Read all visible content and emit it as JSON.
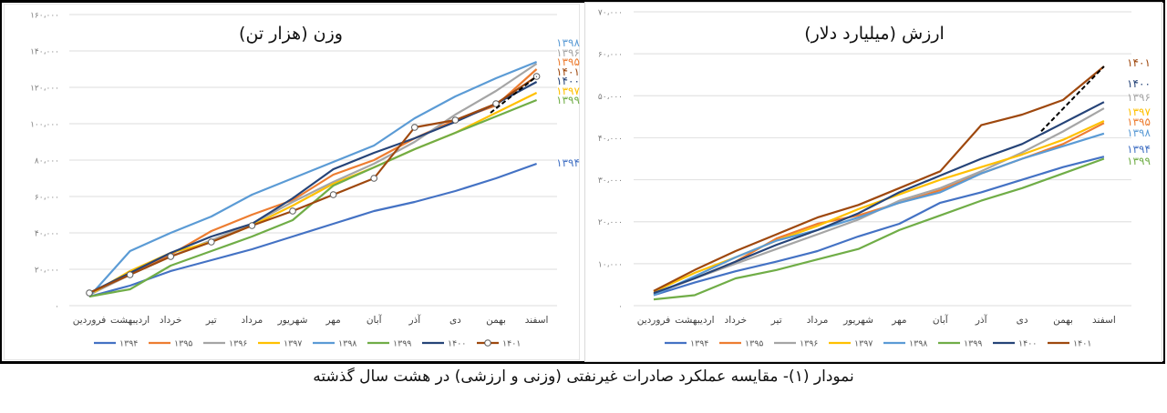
{
  "caption": "نمودار (۱)- مقایسه عملکرد صادرات غیرنفتی (وزنی و ارزشی) در هشت سال گذشته",
  "months": [
    "فروردین",
    "اردیبهشت",
    "خرداد",
    "تیر",
    "مرداد",
    "شهریور",
    "مهر",
    "آبان",
    "آذر",
    "دی",
    "بهمن",
    "اسفند"
  ],
  "series_colors": {
    "1394": "#4472c4",
    "1395": "#ed7d31",
    "1396": "#a5a5a5",
    "1397": "#ffc000",
    "1398": "#5b9bd5",
    "1399": "#70ad47",
    "1400": "#264478",
    "1401": "#9e480e"
  },
  "legend_labels": [
    "۱۳۹۴",
    "۱۳۹۵",
    "۱۳۹۶",
    "۱۳۹۷",
    "۱۳۹۸",
    "۱۳۹۹",
    "۱۴۰۰",
    "۱۴۰۱"
  ],
  "chart_data": [
    {
      "type": "line",
      "title": "وزن (هزار تن)",
      "xlabel": "",
      "ylabel": "",
      "ylim": [
        0,
        160000
      ],
      "yticks": [
        "۰",
        "۲۰،۰۰۰",
        "۴۰،۰۰۰",
        "۶۰،۰۰۰",
        "۸۰،۰۰۰",
        "۱۰۰،۰۰۰",
        "۱۲۰،۰۰۰",
        "۱۴۰،۰۰۰",
        "۱۶۰،۰۰۰"
      ],
      "grid": true,
      "legend_position": "bottom",
      "categories": [
        "فروردین",
        "اردیبهشت",
        "خرداد",
        "تیر",
        "مرداد",
        "شهریور",
        "مهر",
        "آبان",
        "آذر",
        "دی",
        "بهمن",
        "اسفند"
      ],
      "series": [
        {
          "name": "۱۳۹۴",
          "key": "1394",
          "values": [
            5000,
            11000,
            19000,
            25000,
            31000,
            38000,
            45000,
            52000,
            57000,
            63000,
            70000,
            78000
          ]
        },
        {
          "name": "۱۳۹۵",
          "key": "1395",
          "values": [
            6000,
            17000,
            28000,
            41000,
            50000,
            58000,
            72000,
            80000,
            92000,
            102000,
            110000,
            130000
          ]
        },
        {
          "name": "۱۳۹۶",
          "key": "1396",
          "values": [
            6000,
            17000,
            27000,
            36000,
            45000,
            57000,
            68000,
            78000,
            90000,
            105000,
            118000,
            133000
          ]
        },
        {
          "name": "۱۳۹۷",
          "key": "1397",
          "values": [
            6000,
            19000,
            29000,
            35000,
            44000,
            55000,
            67000,
            76000,
            86000,
            95000,
            106000,
            117000
          ]
        },
        {
          "name": "۱۳۹۸",
          "key": "1398",
          "values": [
            5000,
            30000,
            40000,
            49000,
            61000,
            70000,
            79000,
            88000,
            103000,
            115000,
            125000,
            134000
          ]
        },
        {
          "name": "۱۳۹۹",
          "key": "1399",
          "values": [
            5000,
            9000,
            22000,
            30000,
            38000,
            47000,
            66000,
            76000,
            86000,
            95000,
            104000,
            113000
          ]
        },
        {
          "name": "۱۴۰۰",
          "key": "1400",
          "values": [
            7000,
            18000,
            29000,
            38000,
            45000,
            59000,
            75000,
            84000,
            92000,
            101000,
            111000,
            123000
          ]
        },
        {
          "name": "۱۴۰۱",
          "key": "1401",
          "values": [
            7000,
            17000,
            27000,
            35000,
            44000,
            52000,
            61000,
            70000,
            98000,
            102000,
            111000,
            126000
          ],
          "markers": true
        }
      ],
      "trendline": {
        "series": "۱۴۰۱",
        "from_index": 10,
        "to_index": 11,
        "style": "dashed"
      },
      "end_labels_order": [
        "۱۳۹۸",
        "۱۳۹۶",
        "۱۳۹۵",
        "۱۴۰۱",
        "۱۴۰۰",
        "۱۳۹۷",
        "۱۳۹۹",
        "۱۳۹۴"
      ]
    },
    {
      "type": "line",
      "title": "ارزش (میلیارد دلار)",
      "xlabel": "",
      "ylabel": "",
      "ylim": [
        0,
        70000
      ],
      "yticks": [
        "۰",
        "۱۰،۰۰۰",
        "۲۰،۰۰۰",
        "۳۰،۰۰۰",
        "۴۰،۰۰۰",
        "۵۰،۰۰۰",
        "۶۰،۰۰۰",
        "۷۰،۰۰۰"
      ],
      "grid": true,
      "legend_position": "bottom",
      "categories": [
        "فروردین",
        "اردیبهشت",
        "خرداد",
        "تیر",
        "مرداد",
        "شهریور",
        "مهر",
        "آبان",
        "آذر",
        "دی",
        "بهمن",
        "اسفند"
      ],
      "series": [
        {
          "name": "۱۳۹۴",
          "key": "1394",
          "values": [
            2500,
            5500,
            8200,
            10500,
            13000,
            16500,
            19500,
            24500,
            27000,
            30000,
            33000,
            35500
          ]
        },
        {
          "name": "۱۳۹۵",
          "key": "1395",
          "values": [
            2800,
            6500,
            10500,
            16000,
            19500,
            21500,
            24500,
            27500,
            31500,
            35000,
            38500,
            43500
          ]
        },
        {
          "name": "۱۳۹۶",
          "key": "1396",
          "values": [
            2800,
            6500,
            10000,
            13500,
            17000,
            20500,
            25000,
            28000,
            32000,
            36500,
            41500,
            47000
          ]
        },
        {
          "name": "۱۳۹۷",
          "key": "1397",
          "values": [
            3300,
            7800,
            11500,
            15500,
            19000,
            23000,
            26500,
            30000,
            33000,
            36000,
            39500,
            44000
          ]
        },
        {
          "name": "۱۳۹۸",
          "key": "1398",
          "values": [
            2500,
            7000,
            11500,
            15500,
            18000,
            21000,
            24500,
            27000,
            31500,
            35000,
            38000,
            41000
          ]
        },
        {
          "name": "۱۳۹۹",
          "key": "1399",
          "values": [
            1500,
            2500,
            6500,
            8500,
            11000,
            13500,
            18000,
            21500,
            25000,
            28000,
            31500,
            35000
          ]
        },
        {
          "name": "۱۴۰۰",
          "key": "1400",
          "values": [
            3000,
            6500,
            10500,
            14500,
            18000,
            22000,
            27000,
            31000,
            35000,
            38500,
            43500,
            48500
          ]
        },
        {
          "name": "۱۴۰۱",
          "key": "1401",
          "values": [
            3500,
            8500,
            13000,
            17000,
            21000,
            24000,
            28000,
            32000,
            43000,
            45500,
            49000,
            57000
          ]
        }
      ],
      "trendline": {
        "series": "۱۴۰۱",
        "from_index": 9.6,
        "to_index": 11,
        "style": "dashed"
      },
      "end_labels_order": [
        "۱۴۰۱",
        "۱۴۰۰",
        "۱۳۹۶",
        "۱۳۹۷",
        "۱۳۹۵",
        "۱۳۹۸",
        "۱۳۹۴",
        "۱۳۹۹"
      ]
    }
  ]
}
